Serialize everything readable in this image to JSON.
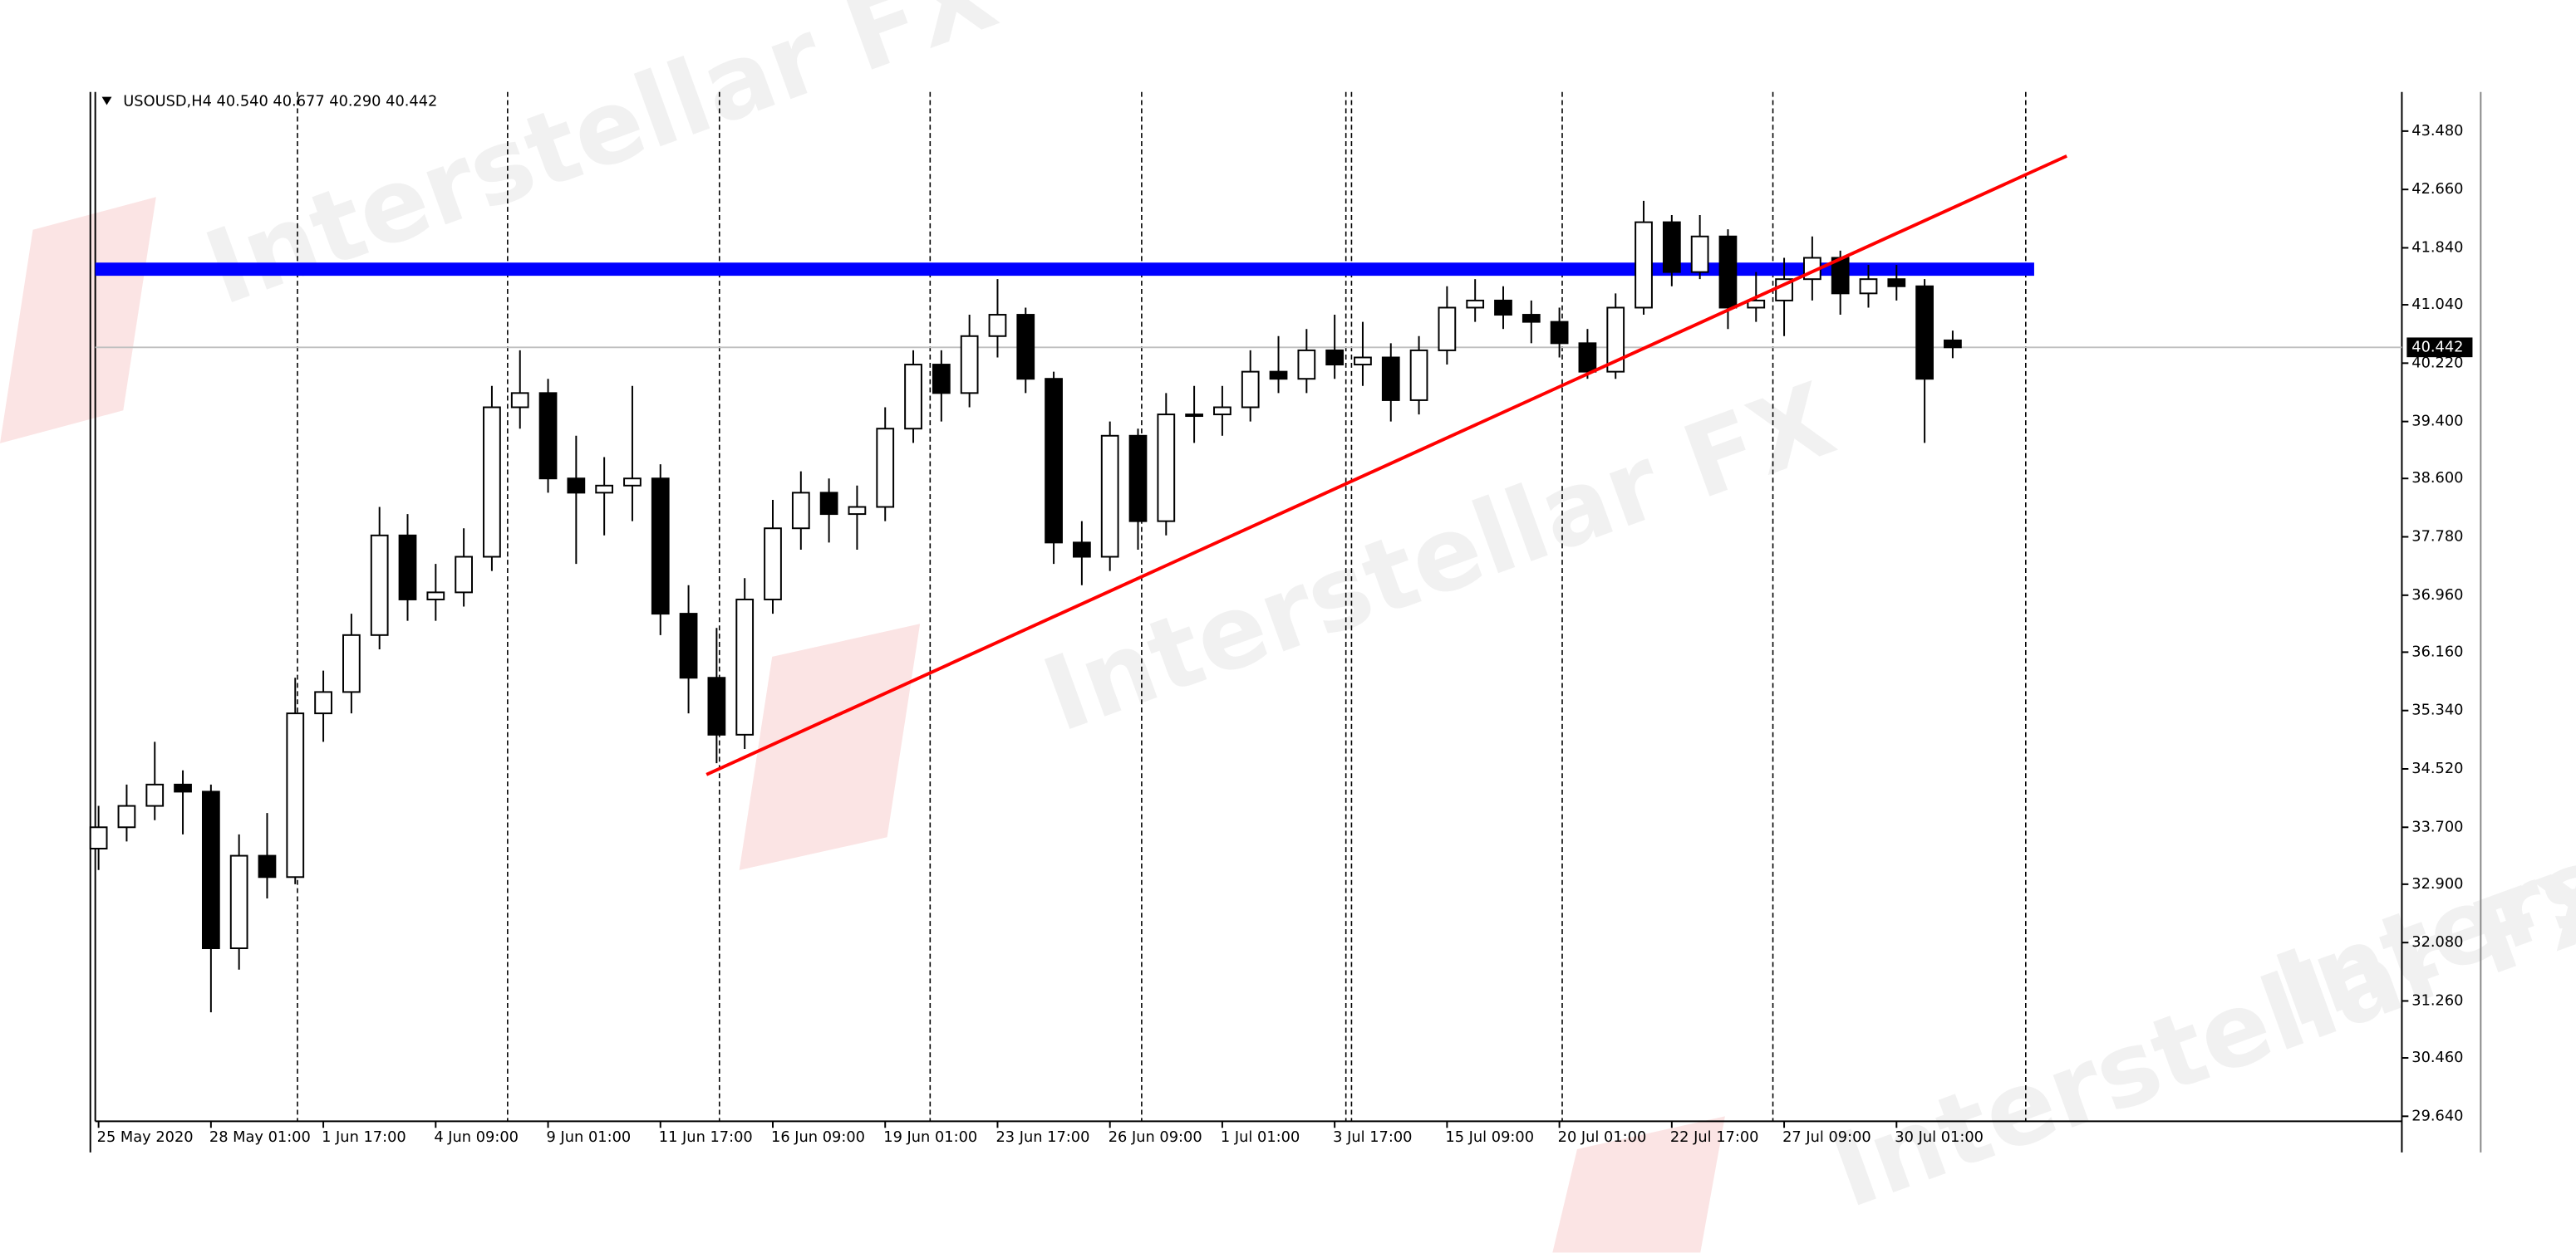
{
  "chart_data": {
    "type": "candlestick",
    "title": "USOUSD,H4  40.540 40.677 40.290 40.442",
    "watermark": "Interstellar FX",
    "categories": [
      "25 May 2020",
      null,
      null,
      null,
      "28 May 01:00",
      null,
      null,
      null,
      "1 Jun 17:00",
      null,
      null,
      null,
      "4 Jun 09:00",
      null,
      null,
      null,
      "9 Jun 01:00",
      null,
      null,
      null,
      "11 Jun 17:00",
      null,
      null,
      null,
      "16 Jun 09:00",
      null,
      null,
      null,
      "19 Jun 01:00",
      null,
      null,
      null,
      "23 Jun 17:00",
      null,
      null,
      null,
      "26 Jun 09:00",
      null,
      null,
      null,
      "1 Jul 01:00",
      null,
      null,
      null,
      "3 Jul 17:00",
      null,
      null,
      null,
      "15 Jul 09:00",
      null,
      null,
      null,
      "20 Jul 01:00",
      null,
      null,
      null,
      "22 Jul 17:00",
      null,
      null,
      null,
      "27 Jul 09:00",
      null,
      null,
      null,
      "30 Jul 01:00",
      null,
      null
    ],
    "open": [
      33.4,
      33.7,
      34.0,
      34.3,
      34.2,
      32.0,
      33.3,
      33.0,
      35.3,
      35.6,
      36.4,
      37.8,
      36.9,
      37.0,
      37.5,
      39.6,
      39.8,
      38.6,
      38.4,
      38.5,
      38.6,
      36.7,
      35.8,
      35.0,
      36.9,
      37.9,
      38.4,
      38.1,
      38.2,
      39.3,
      40.2,
      39.8,
      40.6,
      40.9,
      40.0,
      37.7,
      37.5,
      39.2,
      38.0,
      39.5,
      39.5,
      39.6,
      40.1,
      40.0,
      40.4,
      40.2,
      40.3,
      39.7,
      40.4,
      41.0,
      41.1,
      40.9,
      40.8,
      40.5,
      40.1,
      41.0,
      42.2,
      41.5,
      42.0,
      41.0,
      41.1,
      41.4,
      41.7,
      41.2,
      41.4,
      41.3,
      40.54
    ],
    "high": [
      34.0,
      34.3,
      34.9,
      34.5,
      34.3,
      33.6,
      33.9,
      35.8,
      35.9,
      36.7,
      38.2,
      38.1,
      37.4,
      37.9,
      39.9,
      40.4,
      40.0,
      39.2,
      38.9,
      39.9,
      38.8,
      37.1,
      36.5,
      37.2,
      38.3,
      38.7,
      38.6,
      38.5,
      39.6,
      40.4,
      40.4,
      40.9,
      41.4,
      41.0,
      40.1,
      38.0,
      39.4,
      39.3,
      39.8,
      39.9,
      39.9,
      40.4,
      40.6,
      40.7,
      40.9,
      40.8,
      40.5,
      40.6,
      41.3,
      41.4,
      41.3,
      41.1,
      41.0,
      40.7,
      41.2,
      42.5,
      42.3,
      42.3,
      42.1,
      41.5,
      41.7,
      42.0,
      41.8,
      41.6,
      41.6,
      41.4,
      40.677
    ],
    "low": [
      33.1,
      33.5,
      33.8,
      33.6,
      31.1,
      31.7,
      32.7,
      32.9,
      34.9,
      35.3,
      36.2,
      36.6,
      36.6,
      36.8,
      37.3,
      39.3,
      38.4,
      37.4,
      37.8,
      38.0,
      36.4,
      35.3,
      34.6,
      34.8,
      36.7,
      37.6,
      37.7,
      37.6,
      38.0,
      39.1,
      39.4,
      39.6,
      40.3,
      39.8,
      37.4,
      37.1,
      37.3,
      37.6,
      37.8,
      39.1,
      39.2,
      39.4,
      39.8,
      39.8,
      40.0,
      39.9,
      39.4,
      39.5,
      40.2,
      40.8,
      40.7,
      40.5,
      40.3,
      40.0,
      40.0,
      40.9,
      41.3,
      41.4,
      40.7,
      40.8,
      40.6,
      41.1,
      40.9,
      41.0,
      41.1,
      39.1,
      40.29
    ],
    "close": [
      33.7,
      34.0,
      34.3,
      34.2,
      32.0,
      33.3,
      33.0,
      35.3,
      35.6,
      36.4,
      37.8,
      36.9,
      37.0,
      37.5,
      39.6,
      39.8,
      38.6,
      38.4,
      38.5,
      38.6,
      36.7,
      35.8,
      35.0,
      36.9,
      37.9,
      38.4,
      38.1,
      38.2,
      39.3,
      40.2,
      39.8,
      40.6,
      40.9,
      40.0,
      37.7,
      37.5,
      39.2,
      38.0,
      39.5,
      39.5,
      39.6,
      40.1,
      40.0,
      40.4,
      40.2,
      40.3,
      39.7,
      40.4,
      41.0,
      41.1,
      40.9,
      40.8,
      40.5,
      40.1,
      41.0,
      42.2,
      41.5,
      42.0,
      41.0,
      41.1,
      41.4,
      41.7,
      41.2,
      41.4,
      41.3,
      40.0,
      40.442
    ],
    "up_color": "#ffffff",
    "down_color": "#000000",
    "wick_color": "#000000",
    "ylim": [
      29.57,
      44.03
    ],
    "yticks": [
      {
        "value": 29.64,
        "label": "29.640"
      },
      {
        "value": 30.46,
        "label": "30.460"
      },
      {
        "value": 31.26,
        "label": "31.260"
      },
      {
        "value": 32.08,
        "label": "32.080"
      },
      {
        "value": 32.9,
        "label": "32.900"
      },
      {
        "value": 33.7,
        "label": "33.700"
      },
      {
        "value": 34.52,
        "label": "34.520"
      },
      {
        "value": 35.34,
        "label": "35.340"
      },
      {
        "value": 36.16,
        "label": "36.160"
      },
      {
        "value": 36.96,
        "label": "36.960"
      },
      {
        "value": 37.78,
        "label": "37.780"
      },
      {
        "value": 38.6,
        "label": "38.600"
      },
      {
        "value": 39.4,
        "label": "39.400"
      },
      {
        "value": 40.22,
        "label": "40.220"
      },
      {
        "value": 41.04,
        "label": "41.040"
      },
      {
        "value": 41.84,
        "label": "41.840"
      },
      {
        "value": 42.66,
        "label": "42.660"
      },
      {
        "value": 43.48,
        "label": "43.480"
      }
    ],
    "last_price": 40.442,
    "last_price_color": "#c0c0c0",
    "separators": [
      7.08,
      14.56,
      22.1,
      29.6,
      37.13,
      44.4,
      44.6,
      52.1,
      59.6,
      68.6
    ],
    "hline": {
      "value": 41.54,
      "color": "#0000ff",
      "end": 68.9
    },
    "trendline": {
      "x": [
        21.64,
        70.06
      ],
      "y": [
        34.44,
        43.13
      ],
      "color": "#ff0000"
    }
  }
}
